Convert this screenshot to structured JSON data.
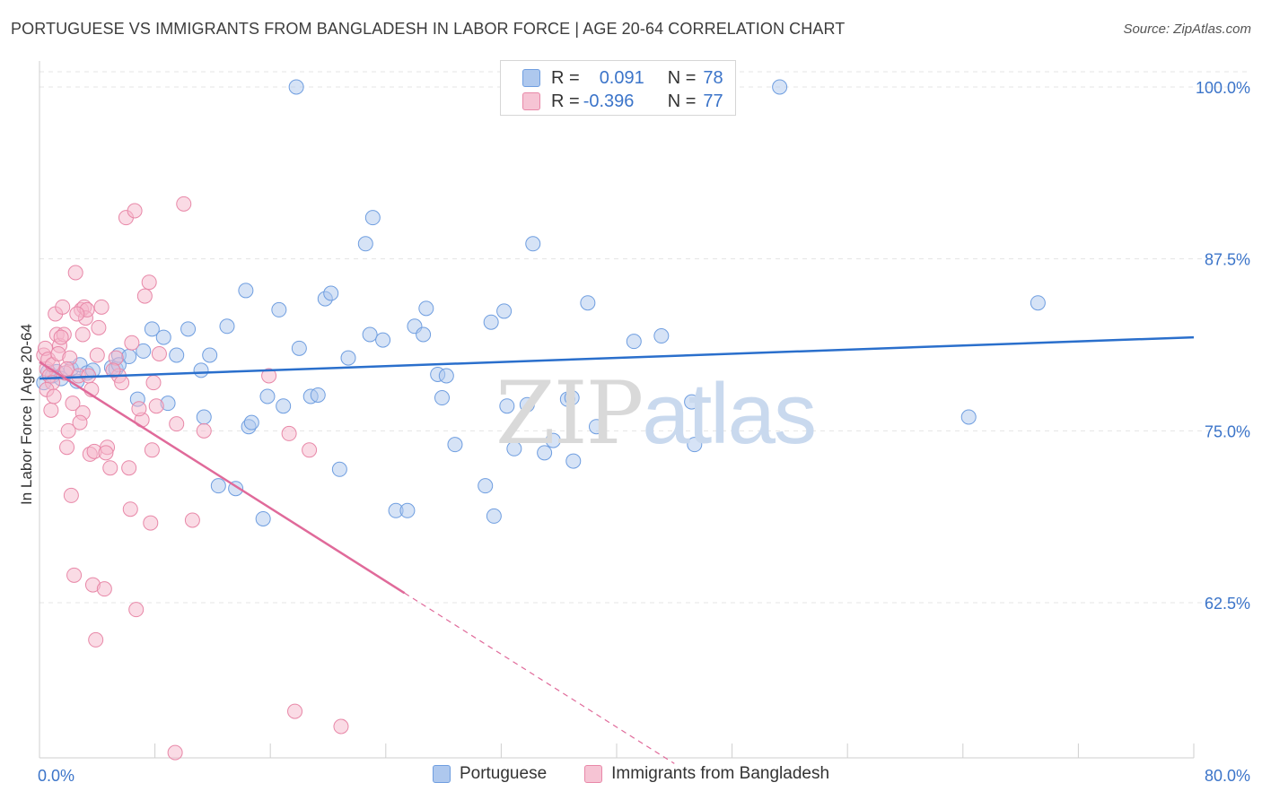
{
  "title": "PORTUGUESE VS IMMIGRANTS FROM BANGLADESH IN LABOR FORCE | AGE 20-64 CORRELATION CHART",
  "source": "Source: ZipAtlas.com",
  "watermark": {
    "zip": "ZIP",
    "atlas": "atlas"
  },
  "legend_top": {
    "r_label": "R =",
    "n_label": "N =",
    "rows": [
      {
        "r": "0.091",
        "n": "78"
      },
      {
        "r": "-0.396",
        "n": "77"
      }
    ]
  },
  "colors": {
    "blue_fill": "#aec8ee",
    "blue_stroke": "#6f9ee0",
    "blue_line": "#2a6fcc",
    "pink_fill": "#f6b8cc",
    "pink_stroke": "#e888a8",
    "pink_line": "#e06a9a",
    "tick_label": "#3b74c9"
  },
  "chart_data": {
    "type": "scatter",
    "title": "PORTUGUESE VS IMMIGRANTS FROM BANGLADESH IN LABOR FORCE | AGE 20-64 CORRELATION CHART",
    "xlabel": "",
    "ylabel": "In Labor Force | Age 20-64",
    "xlim": [
      0,
      80
    ],
    "ylim": [
      51,
      102
    ],
    "x_tick_labels": [
      "0.0%",
      "80.0%"
    ],
    "y_ticks": [
      62.5,
      75.0,
      87.5,
      100.0
    ],
    "y_tick_labels": [
      "62.5%",
      "75.0%",
      "87.5%",
      "100.0%"
    ],
    "grid": true,
    "legend_position": "bottom",
    "series": [
      {
        "name": "Portuguese",
        "trend": {
          "x": [
            0,
            80
          ],
          "y": [
            78.8,
            81.8
          ],
          "dashed_from": null
        },
        "points": [
          [
            0.3,
            78.5
          ],
          [
            0.6,
            79.3
          ],
          [
            0.9,
            79.0
          ],
          [
            1.2,
            79.3
          ],
          [
            1.5,
            78.8
          ],
          [
            2.2,
            79.5
          ],
          [
            2.6,
            78.6
          ],
          [
            2.8,
            79.8
          ],
          [
            3.3,
            79.2
          ],
          [
            3.7,
            79.4
          ],
          [
            5.0,
            79.6
          ],
          [
            5.3,
            79.5
          ],
          [
            5.5,
            80.5
          ],
          [
            6.2,
            80.4
          ],
          [
            6.8,
            77.3
          ],
          [
            7.2,
            80.8
          ],
          [
            7.8,
            82.4
          ],
          [
            8.6,
            81.8
          ],
          [
            8.9,
            77.0
          ],
          [
            9.5,
            80.5
          ],
          [
            10.3,
            82.4
          ],
          [
            11.2,
            79.4
          ],
          [
            11.8,
            80.5
          ],
          [
            12.4,
            71.0
          ],
          [
            13.0,
            82.6
          ],
          [
            13.6,
            70.8
          ],
          [
            14.3,
            85.2
          ],
          [
            14.5,
            75.3
          ],
          [
            14.7,
            75.6
          ],
          [
            15.5,
            68.6
          ],
          [
            15.8,
            77.5
          ],
          [
            16.6,
            83.8
          ],
          [
            16.9,
            76.8
          ],
          [
            18.0,
            81.0
          ],
          [
            18.8,
            77.5
          ],
          [
            19.3,
            77.6
          ],
          [
            19.8,
            84.6
          ],
          [
            20.2,
            85.0
          ],
          [
            20.8,
            72.2
          ],
          [
            21.4,
            80.3
          ],
          [
            22.6,
            88.6
          ],
          [
            22.9,
            82.0
          ],
          [
            23.1,
            90.5
          ],
          [
            23.8,
            81.6
          ],
          [
            24.7,
            69.2
          ],
          [
            25.5,
            69.2
          ],
          [
            26.0,
            82.6
          ],
          [
            26.6,
            82.0
          ],
          [
            26.8,
            83.9
          ],
          [
            27.6,
            79.1
          ],
          [
            27.9,
            77.4
          ],
          [
            28.2,
            79.0
          ],
          [
            28.8,
            74.0
          ],
          [
            30.9,
            71.0
          ],
          [
            31.3,
            82.9
          ],
          [
            31.5,
            68.8
          ],
          [
            32.2,
            83.7
          ],
          [
            32.4,
            76.8
          ],
          [
            32.9,
            73.7
          ],
          [
            33.8,
            76.9
          ],
          [
            34.2,
            88.6
          ],
          [
            35.0,
            73.4
          ],
          [
            35.6,
            74.3
          ],
          [
            36.6,
            77.3
          ],
          [
            36.9,
            77.4
          ],
          [
            37.0,
            72.8
          ],
          [
            38.0,
            84.3
          ],
          [
            38.6,
            75.3
          ],
          [
            41.2,
            81.5
          ],
          [
            43.1,
            81.9
          ],
          [
            45.2,
            77.1
          ],
          [
            45.4,
            74.0
          ],
          [
            69.2,
            84.3
          ],
          [
            64.4,
            76.0
          ],
          [
            17.8,
            100.0
          ],
          [
            51.3,
            100.0
          ],
          [
            5.5,
            79.8
          ],
          [
            11.4,
            76.0
          ]
        ]
      },
      {
        "name": "Immigrants from Bangladesh",
        "trend": {
          "x": [
            0,
            25.3
          ],
          "y": [
            80.0,
            63.2
          ],
          "dashed_x": [
            25.3,
            44.0
          ],
          "dashed_y": [
            63.2,
            50.8
          ]
        },
        "points": [
          [
            0.3,
            80.5
          ],
          [
            0.4,
            81.0
          ],
          [
            0.5,
            79.5
          ],
          [
            0.6,
            80.2
          ],
          [
            0.7,
            79.0
          ],
          [
            0.8,
            76.5
          ],
          [
            0.9,
            78.5
          ],
          [
            1.1,
            83.5
          ],
          [
            1.2,
            82.0
          ],
          [
            1.4,
            81.2
          ],
          [
            1.6,
            84.0
          ],
          [
            1.7,
            82.0
          ],
          [
            1.8,
            79.2
          ],
          [
            1.9,
            73.8
          ],
          [
            2.0,
            75.0
          ],
          [
            2.2,
            70.3
          ],
          [
            2.3,
            77.0
          ],
          [
            2.4,
            64.5
          ],
          [
            2.5,
            86.5
          ],
          [
            2.7,
            79.0
          ],
          [
            2.9,
            83.8
          ],
          [
            3.0,
            76.3
          ],
          [
            3.1,
            84.0
          ],
          [
            3.2,
            83.2
          ],
          [
            3.3,
            83.8
          ],
          [
            3.4,
            79.0
          ],
          [
            3.5,
            73.3
          ],
          [
            3.7,
            63.8
          ],
          [
            3.8,
            73.5
          ],
          [
            3.9,
            59.8
          ],
          [
            4.0,
            80.5
          ],
          [
            4.1,
            82.5
          ],
          [
            4.3,
            84.0
          ],
          [
            4.5,
            63.5
          ],
          [
            4.7,
            73.8
          ],
          [
            4.9,
            72.3
          ],
          [
            5.3,
            80.3
          ],
          [
            5.5,
            79.0
          ],
          [
            5.7,
            78.5
          ],
          [
            6.0,
            90.5
          ],
          [
            6.2,
            72.3
          ],
          [
            6.3,
            69.3
          ],
          [
            6.4,
            81.4
          ],
          [
            6.6,
            91.0
          ],
          [
            6.7,
            62.0
          ],
          [
            7.1,
            75.8
          ],
          [
            7.3,
            84.8
          ],
          [
            7.6,
            85.8
          ],
          [
            7.7,
            68.3
          ],
          [
            7.8,
            73.6
          ],
          [
            7.9,
            78.5
          ],
          [
            8.1,
            76.8
          ],
          [
            8.3,
            80.6
          ],
          [
            9.4,
            51.6
          ],
          [
            9.5,
            75.5
          ],
          [
            10.0,
            91.5
          ],
          [
            10.6,
            68.5
          ],
          [
            11.4,
            75.0
          ],
          [
            15.9,
            79.0
          ],
          [
            17.3,
            74.8
          ],
          [
            17.7,
            54.6
          ],
          [
            18.7,
            73.6
          ],
          [
            20.9,
            53.5
          ],
          [
            1.5,
            81.8
          ],
          [
            2.8,
            75.6
          ],
          [
            3.6,
            78.0
          ],
          [
            0.9,
            79.8
          ],
          [
            1.3,
            80.6
          ],
          [
            2.1,
            80.3
          ],
          [
            2.6,
            83.5
          ],
          [
            5.1,
            79.4
          ],
          [
            6.9,
            76.6
          ],
          [
            0.5,
            78.0
          ],
          [
            1.0,
            77.5
          ],
          [
            4.6,
            73.4
          ],
          [
            3.0,
            82.0
          ],
          [
            1.9,
            79.5
          ]
        ]
      }
    ]
  }
}
